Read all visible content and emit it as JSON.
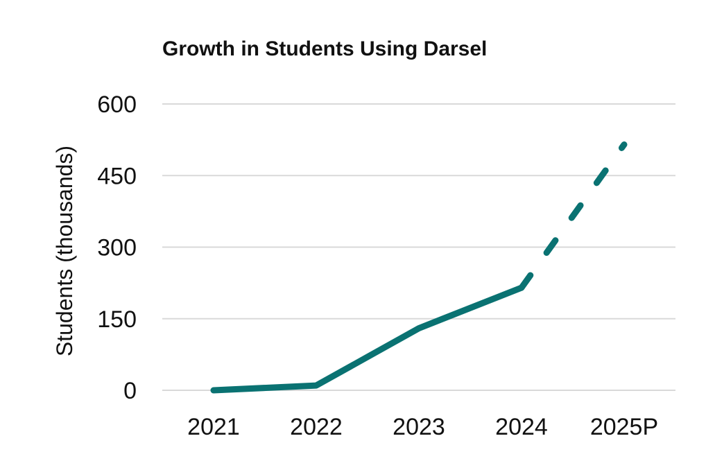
{
  "chart_data": {
    "type": "line",
    "title": "Growth in Students Using Darsel",
    "xlabel": "",
    "ylabel": "Students (thousands)",
    "categories": [
      "2021",
      "2022",
      "2023",
      "2024",
      "2025P"
    ],
    "series": [
      {
        "name": "Students",
        "values": [
          0,
          10,
          130,
          215,
          515
        ],
        "projected_from_index": 3
      }
    ],
    "ylim": [
      0,
      600
    ],
    "yticks": [
      0,
      150,
      300,
      450,
      600
    ],
    "ytick_labels": [
      "0",
      "150",
      "300",
      "450",
      "600"
    ],
    "grid": true,
    "legend": "none",
    "colors": {
      "line": "#0a7272",
      "grid": "#d9d9d9",
      "text": "#111111"
    }
  }
}
